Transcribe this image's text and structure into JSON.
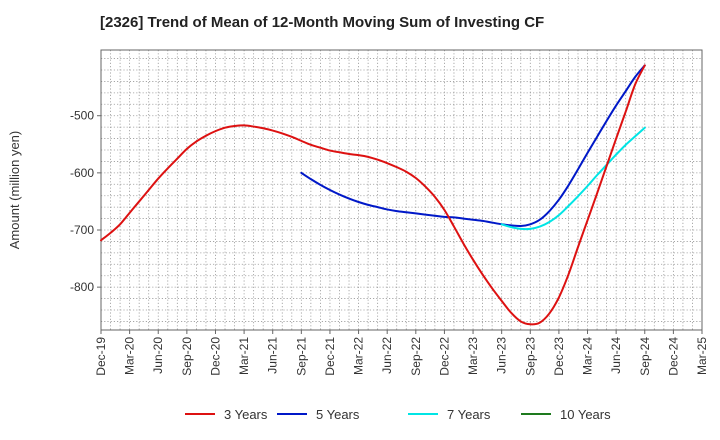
{
  "chart_data": {
    "type": "line",
    "title": "[2326]  Trend of Mean of 12-Month Moving Sum of Investing CF",
    "xlabel": "",
    "ylabel": "Amount (million yen)",
    "ylim": [
      -875,
      -385
    ],
    "yticks": [
      -500,
      -600,
      -700,
      -800
    ],
    "ytick_labels": [
      "-500",
      "-600",
      "-700",
      "-800"
    ],
    "x_tick_labels": [
      "Dec-19",
      "Mar-20",
      "Jun-20",
      "Sep-20",
      "Dec-20",
      "Mar-21",
      "Jun-21",
      "Sep-21",
      "Dec-21",
      "Mar-22",
      "Jun-22",
      "Sep-22",
      "Dec-22",
      "Mar-23",
      "Jun-23",
      "Sep-23",
      "Dec-23",
      "Mar-24",
      "Jun-24",
      "Sep-24",
      "Dec-24",
      "Mar-25"
    ],
    "x_months_note": "x values are month indexes where 0 = Dec-19",
    "grid": true,
    "legend_position": "bottom",
    "series": [
      {
        "name": "3 Years",
        "color": "#dd1111",
        "x": [
          0,
          1,
          2,
          3,
          4,
          5,
          6,
          7,
          8,
          9,
          10,
          11,
          12,
          13,
          14,
          15,
          16,
          17,
          18,
          19,
          20,
          21,
          22,
          23,
          24,
          25,
          26,
          27,
          28,
          29,
          30,
          31,
          32,
          33,
          34,
          35,
          36,
          37,
          38,
          39,
          40,
          41,
          42,
          43,
          44,
          45,
          46,
          47,
          48,
          49,
          50,
          51,
          52,
          53,
          54,
          55,
          56,
          57
        ],
        "values": [
          -718,
          -705,
          -690,
          -670,
          -650,
          -630,
          -610,
          -592,
          -575,
          -558,
          -545,
          -535,
          -527,
          -521,
          -518,
          -517,
          -519,
          -522,
          -526,
          -531,
          -537,
          -544,
          -551,
          -556,
          -561,
          -564,
          -567,
          -569,
          -572,
          -577,
          -583,
          -590,
          -598,
          -609,
          -624,
          -642,
          -665,
          -694,
          -724,
          -752,
          -778,
          -802,
          -824,
          -845,
          -860,
          -865,
          -862,
          -846,
          -818,
          -778,
          -730,
          -683,
          -636,
          -588,
          -540,
          -493,
          -445,
          -412
        ],
        "line_color": "#dd1111"
      },
      {
        "name": "5 Years",
        "color": "#0018c8",
        "x": [
          21,
          22,
          23,
          24,
          25,
          26,
          27,
          28,
          29,
          30,
          31,
          32,
          33,
          34,
          35,
          36,
          37,
          38,
          39,
          40,
          41,
          42,
          43,
          44,
          45,
          46,
          47,
          48,
          49,
          50,
          51,
          52,
          53,
          54,
          55,
          56,
          57
        ],
        "values": [
          -600,
          -611,
          -621,
          -630,
          -638,
          -645,
          -651,
          -656,
          -660,
          -664,
          -667,
          -669,
          -671,
          -673,
          -675,
          -677,
          -678,
          -680,
          -682,
          -684,
          -687,
          -690,
          -692,
          -693,
          -690,
          -682,
          -667,
          -647,
          -622,
          -594,
          -565,
          -537,
          -509,
          -482,
          -457,
          -432,
          -412
        ]
      },
      {
        "name": "7 Years",
        "color": "#00e5e5",
        "x": [
          42,
          43,
          44,
          45,
          46,
          47,
          48,
          49,
          50,
          51,
          52,
          53,
          54,
          55,
          56,
          57
        ],
        "values": [
          -690,
          -695,
          -698,
          -698,
          -694,
          -686,
          -674,
          -658,
          -641,
          -623,
          -604,
          -586,
          -568,
          -551,
          -536,
          -521
        ]
      },
      {
        "name": "10 Years",
        "color": "#1e7a1e",
        "x": [],
        "values": []
      }
    ]
  }
}
